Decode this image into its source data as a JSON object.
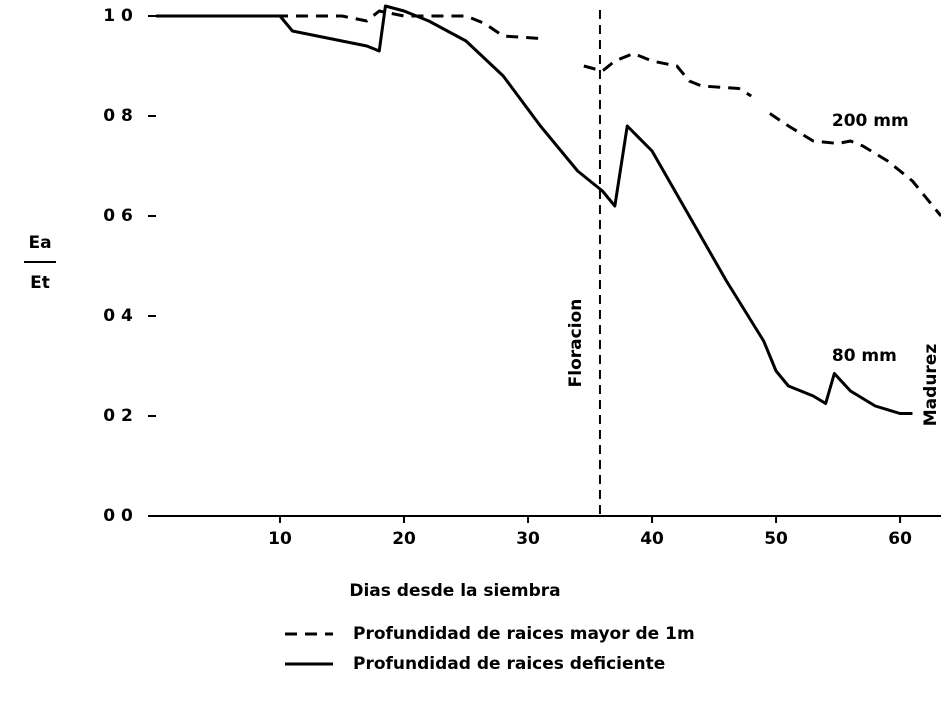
{
  "chart_data": {
    "type": "line",
    "xlabel": "Dias desde la siembra",
    "ylabel_top": "Ea",
    "ylabel_bottom": "Et",
    "xlim": [
      0,
      63.3
    ],
    "ylim": [
      0,
      1
    ],
    "xticks": [
      10,
      20,
      30,
      40,
      50,
      60
    ],
    "yticks": [
      {
        "value": 0,
        "label": "0 0"
      },
      {
        "value": 0.2,
        "label": "0 2"
      },
      {
        "value": 0.4,
        "label": "0 4"
      },
      {
        "value": 0.6,
        "label": "0 6"
      },
      {
        "value": 0.8,
        "label": "0 8"
      },
      {
        "value": 1,
        "label": "1 0"
      }
    ],
    "series": [
      {
        "name": "Profundidad de raices mayor de 1m",
        "color": "#000000",
        "dash": true,
        "x": [
          0,
          10,
          15,
          17,
          18,
          20,
          25,
          26.5,
          28,
          31,
          31.5,
          34.5,
          36,
          37,
          38.5,
          40,
          42,
          43,
          44,
          47,
          48,
          48.7,
          49.5,
          51,
          53,
          55,
          56,
          57,
          59,
          61,
          63.3
        ],
        "values": [
          1.0,
          1.0,
          1.0,
          0.99,
          1.01,
          1.0,
          1.0,
          0.985,
          0.96,
          0.955,
          null,
          0.9,
          0.89,
          0.91,
          0.925,
          0.91,
          0.9,
          0.87,
          0.86,
          0.855,
          0.84,
          null,
          0.805,
          0.78,
          0.75,
          0.745,
          0.75,
          0.74,
          0.71,
          0.67,
          0.6
        ]
      },
      {
        "name": "Profundidad de raices deficiente",
        "color": "#000000",
        "dash": false,
        "x": [
          0,
          10,
          11,
          13,
          17,
          18,
          18.5,
          20,
          22,
          25,
          28,
          31,
          34,
          36,
          37,
          38,
          40,
          43,
          46,
          49,
          50,
          51,
          53,
          54,
          54.7,
          56,
          58,
          60,
          61
        ],
        "values": [
          1.0,
          1.0,
          0.97,
          0.96,
          0.94,
          0.93,
          1.02,
          1.01,
          0.99,
          0.95,
          0.88,
          0.78,
          0.69,
          0.65,
          0.62,
          0.78,
          0.73,
          0.6,
          0.47,
          0.35,
          0.29,
          0.26,
          0.24,
          0.225,
          0.285,
          0.25,
          0.22,
          0.205,
          0.205
        ]
      }
    ],
    "annotations": [
      {
        "text": "200 mm",
        "x": 54.5,
        "y": 0.79
      },
      {
        "text": "80 mm",
        "x": 54.5,
        "y": 0.32
      }
    ],
    "vline": {
      "text": "Floracion",
      "x": 35.8
    },
    "end_label": "Madurez"
  }
}
